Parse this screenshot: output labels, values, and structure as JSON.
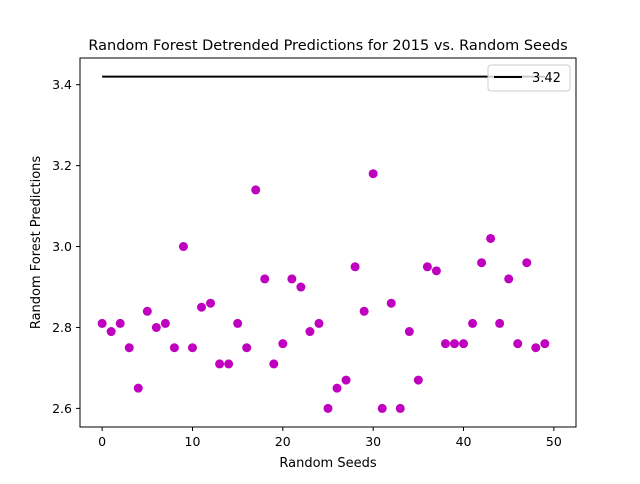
{
  "chart_data": {
    "type": "scatter",
    "title": "Random Forest Detrended Predictions for 2015 vs. Random Seeds",
    "xlabel": "Random Seeds",
    "ylabel": "Random Forest Predictions",
    "xlim": [
      -2.45,
      52.45
    ],
    "ylim": [
      2.554,
      3.466
    ],
    "xticks": [
      0,
      10,
      20,
      30,
      40,
      50
    ],
    "yticks": [
      2.6,
      2.8,
      3.0,
      3.2,
      3.4
    ],
    "xtick_labels": [
      "0",
      "10",
      "20",
      "30",
      "40",
      "50"
    ],
    "ytick_labels": [
      "2.6",
      "2.8",
      "3.0",
      "3.2",
      "3.4"
    ],
    "grid": false,
    "legend_position": "top-right",
    "series": [
      {
        "type": "scatter",
        "color": "#bf00bf",
        "x": [
          0,
          1,
          2,
          3,
          4,
          5,
          6,
          7,
          8,
          9,
          10,
          11,
          12,
          13,
          14,
          15,
          16,
          17,
          18,
          19,
          20,
          21,
          22,
          23,
          24,
          25,
          26,
          27,
          28,
          29,
          30,
          31,
          32,
          33,
          34,
          35,
          36,
          37,
          38,
          39,
          40,
          41,
          42,
          43,
          44,
          45,
          46,
          47,
          48,
          49
        ],
        "values": [
          2.81,
          2.79,
          2.81,
          2.75,
          2.65,
          2.84,
          2.8,
          2.81,
          2.75,
          3.0,
          2.75,
          2.85,
          2.86,
          2.71,
          2.71,
          2.81,
          2.75,
          3.14,
          2.92,
          2.71,
          2.76,
          2.92,
          2.9,
          2.79,
          2.81,
          2.6,
          2.65,
          2.67,
          2.95,
          2.84,
          3.18,
          2.6,
          2.86,
          2.6,
          2.79,
          2.67,
          2.95,
          2.94,
          2.76,
          2.76,
          2.76,
          2.81,
          2.96,
          3.02,
          2.81,
          2.92,
          2.76,
          2.96,
          2.75,
          2.76
        ]
      },
      {
        "type": "hline",
        "name": "3.42",
        "color": "#000000",
        "y": 3.42,
        "x_range": [
          0,
          49
        ]
      }
    ]
  }
}
